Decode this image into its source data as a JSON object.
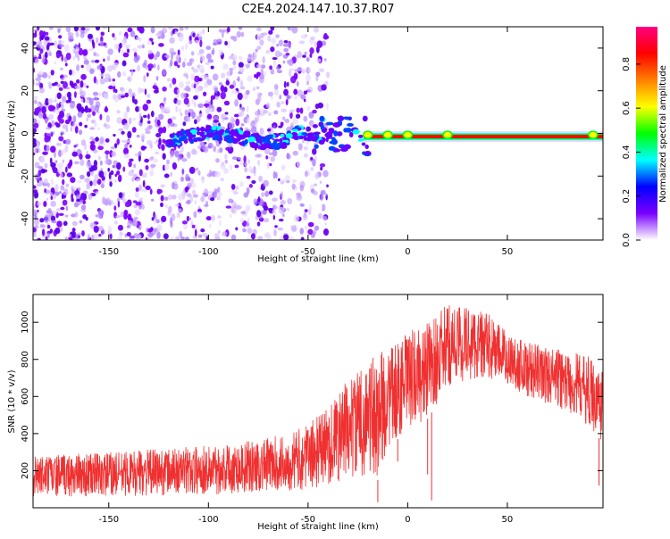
{
  "title": "C2E4.2024.147.10.37.R07",
  "colors": {
    "signal": "#f03030",
    "background": "#ffffff",
    "axes": "#000000"
  },
  "chart_data": [
    {
      "type": "heatmap",
      "xlabel": "Height of straight line (km)",
      "ylabel": "Frequency (Hz)",
      "xlim": [
        -188,
        98
      ],
      "ylim": [
        -50,
        50
      ],
      "xticks": [
        -150,
        -100,
        -50,
        0,
        50
      ],
      "xtick_labels": [
        "-150",
        "-100",
        "-50",
        "0",
        "50"
      ],
      "yticks": [
        -40,
        -20,
        0,
        20,
        40
      ],
      "ytick_labels": [
        "-40",
        "-20",
        "0",
        "20",
        "40"
      ],
      "colorbar": {
        "label": "Normalized spectral amplitude",
        "range": [
          0,
          0.97
        ],
        "ticks": [
          0.0,
          0.2,
          0.4,
          0.6,
          0.8
        ],
        "tick_labels": [
          "0.0",
          "0.2",
          "0.4",
          "0.6",
          "0.8"
        ],
        "colormap": [
          "#ffffff",
          "#7a00ff",
          "#0000ff",
          "#00ffff",
          "#00ff00",
          "#ffff00",
          "#ff8000",
          "#ff0000",
          "#ff0080"
        ]
      },
      "features": {
        "noise_region_x": [
          -188,
          -50
        ],
        "transition_region_x": [
          -50,
          -22
        ],
        "strong_line_x": [
          -22,
          98
        ],
        "strong_line_frequency": -1.5
      }
    },
    {
      "type": "line",
      "xlabel": "Height of straight line (km)",
      "ylabel": "SNR (10 * v/v)",
      "xlim": [
        -188,
        98
      ],
      "ylim": [
        0,
        1150
      ],
      "xticks": [
        -150,
        -100,
        -50,
        0,
        50
      ],
      "xtick_labels": [
        "-150",
        "-100",
        "-50",
        "0",
        "50"
      ],
      "yticks": [
        200,
        400,
        600,
        800,
        1000
      ],
      "ytick_labels": [
        "200",
        "400",
        "600",
        "800",
        "1000"
      ],
      "series": [
        {
          "name": "SNR",
          "envelope_x": [
            -188,
            -150,
            -120,
            -100,
            -80,
            -60,
            -50,
            -40,
            -30,
            -20,
            -15,
            -10,
            0,
            10,
            20,
            30,
            40,
            50,
            60,
            70,
            80,
            90,
            98
          ],
          "envelope_low": [
            60,
            60,
            70,
            70,
            80,
            90,
            100,
            120,
            150,
            180,
            150,
            320,
            420,
            480,
            650,
            680,
            700,
            660,
            600,
            560,
            520,
            450,
            350
          ],
          "envelope_high": [
            280,
            300,
            320,
            340,
            360,
            400,
            450,
            550,
            700,
            780,
            850,
            850,
            950,
            1000,
            1100,
            1100,
            1050,
            950,
            900,
            870,
            850,
            820,
            760
          ],
          "dips": [
            {
              "x": -15,
              "y": 30
            },
            {
              "x": 12,
              "y": 40
            },
            {
              "x": 10,
              "y": 180
            },
            {
              "x": -5,
              "y": 250
            },
            {
              "x": 96,
              "y": 120
            }
          ]
        }
      ]
    }
  ]
}
